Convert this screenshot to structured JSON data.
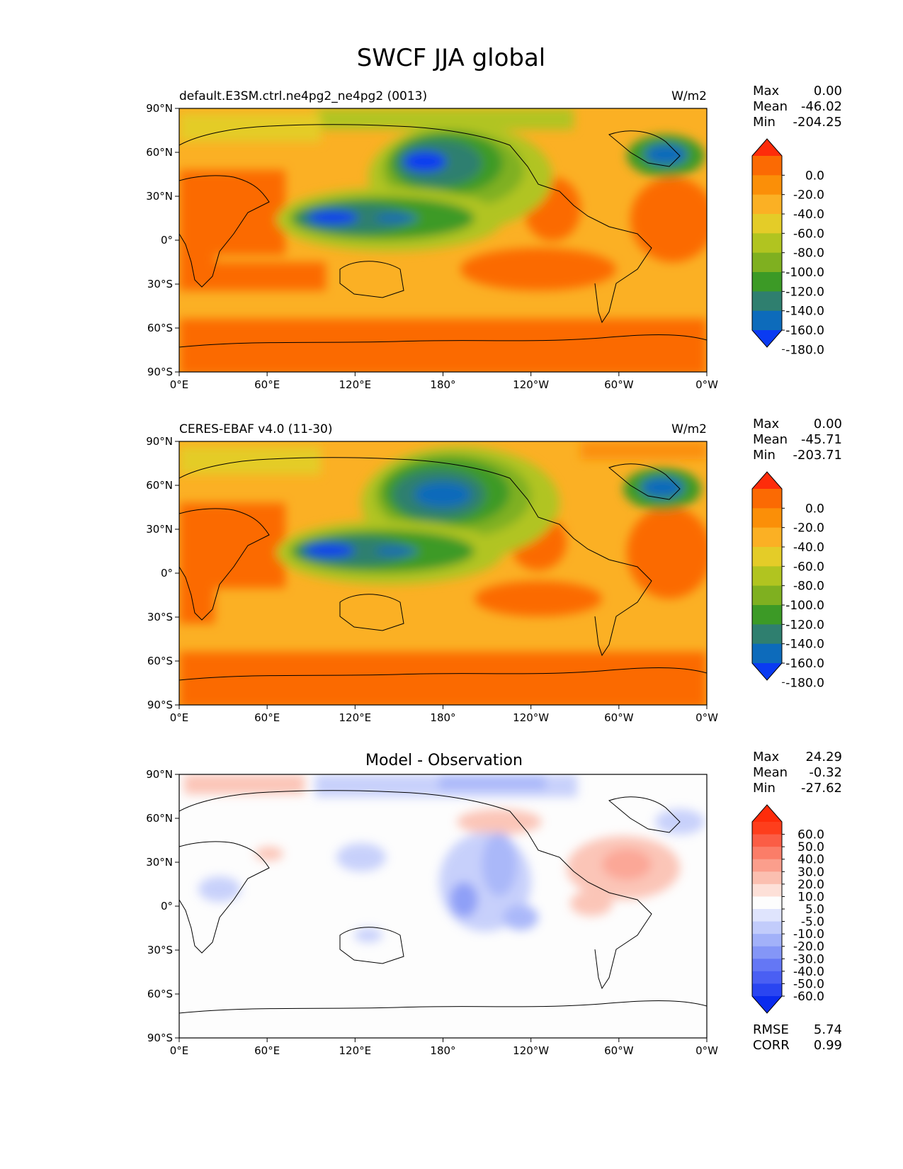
{
  "figure": {
    "title": "SWCF JJA global"
  },
  "chart_data": [
    {
      "type": "heatmap",
      "subtitle_left": "default.E3SM.ctrl.ne4pg2_ne4pg2 (0013)",
      "subtitle_right": "W/m2",
      "stats": [
        {
          "label": "Max",
          "value": "0.00"
        },
        {
          "label": "Mean",
          "value": "-46.02"
        },
        {
          "label": "Min",
          "value": "-204.25"
        }
      ],
      "lon_ticks": [
        "0°E",
        "60°E",
        "120°E",
        "180°",
        "120°W",
        "60°W",
        "0°W"
      ],
      "lat_ticks": [
        "90°N",
        "60°N",
        "30°N",
        "0°",
        "30°S",
        "60°S",
        "90°S"
      ],
      "xlim": [
        0,
        360
      ],
      "ylim": [
        -90,
        90
      ],
      "colorbar": {
        "labels": [
          "0.0",
          "-20.0",
          "-40.0",
          "-60.0",
          "-80.0",
          "-100.0",
          "-120.0",
          "-140.0",
          "-160.0",
          "-180.0"
        ],
        "colors": [
          "#fe2c0a",
          "#fb6a03",
          "#fb8f08",
          "#fbb024",
          "#e4cc28",
          "#b1c420",
          "#7fb020",
          "#3c9a26",
          "#2f7f6f",
          "#0d6bbb",
          "#0a3bf2"
        ],
        "extend": "both"
      }
    },
    {
      "type": "heatmap",
      "subtitle_left": "CERES-EBAF v4.0 (11-30)",
      "subtitle_right": "W/m2",
      "stats": [
        {
          "label": "Max",
          "value": "0.00"
        },
        {
          "label": "Mean",
          "value": "-45.71"
        },
        {
          "label": "Min",
          "value": "-203.71"
        }
      ],
      "lon_ticks": [
        "0°E",
        "60°E",
        "120°E",
        "180°",
        "120°W",
        "60°W",
        "0°W"
      ],
      "lat_ticks": [
        "90°N",
        "60°N",
        "30°N",
        "0°",
        "30°S",
        "60°S",
        "90°S"
      ],
      "xlim": [
        0,
        360
      ],
      "ylim": [
        -90,
        90
      ],
      "colorbar": {
        "labels": [
          "0.0",
          "-20.0",
          "-40.0",
          "-60.0",
          "-80.0",
          "-100.0",
          "-120.0",
          "-140.0",
          "-160.0",
          "-180.0"
        ],
        "colors": [
          "#fe2c0a",
          "#fb6a03",
          "#fb8f08",
          "#fbb024",
          "#e4cc28",
          "#b1c420",
          "#7fb020",
          "#3c9a26",
          "#2f7f6f",
          "#0d6bbb",
          "#0a3bf2"
        ],
        "extend": "both"
      }
    },
    {
      "type": "heatmap",
      "title": "Model - Observation",
      "stats": [
        {
          "label": "Max",
          "value": "24.29"
        },
        {
          "label": "Mean",
          "value": "-0.32"
        },
        {
          "label": "Min",
          "value": "-27.62"
        }
      ],
      "lon_ticks": [
        "0°E",
        "60°E",
        "120°E",
        "180°",
        "120°W",
        "60°W",
        "0°W"
      ],
      "lat_ticks": [
        "90°N",
        "60°N",
        "30°N",
        "0°",
        "30°S",
        "60°S",
        "90°S"
      ],
      "xlim": [
        0,
        360
      ],
      "ylim": [
        -90,
        90
      ],
      "colorbar": {
        "labels": [
          "60.0",
          "50.0",
          "40.0",
          "30.0",
          "20.0",
          "10.0",
          "5.0",
          "-5.0",
          "-10.0",
          "-20.0",
          "-30.0",
          "-40.0",
          "-50.0",
          "-60.0"
        ],
        "colors": [
          "#fe2c0a",
          "#fe3e1c",
          "#fb5d45",
          "#fb7d68",
          "#fb9e8c",
          "#fbbfb0",
          "#fde0d8",
          "#fdfdfd",
          "#dfe4fd",
          "#c2ccfb",
          "#a2b1f9",
          "#8496f7",
          "#6477f5",
          "#4a5ff3",
          "#2a45f1",
          "#0a2bee"
        ],
        "extend": "both"
      },
      "error_stats": [
        {
          "label": "RMSE",
          "value": "5.74"
        },
        {
          "label": "CORR",
          "value": "0.99"
        }
      ]
    }
  ]
}
